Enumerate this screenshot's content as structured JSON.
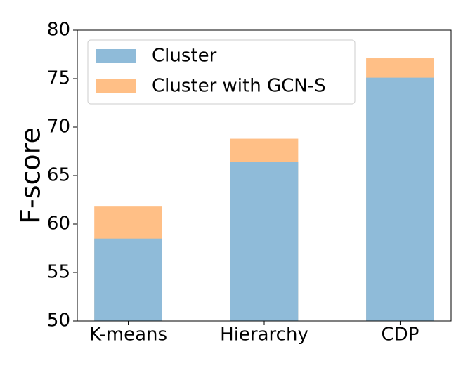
{
  "chart_data": {
    "type": "bar",
    "ylabel": "F-score",
    "categories": [
      "K-means",
      "Hierarchy",
      "CDP"
    ],
    "series": [
      {
        "name": "Cluster",
        "color": "#8fbbd9",
        "values": [
          58.5,
          66.4,
          75.1
        ]
      },
      {
        "name": "Cluster with GCN-S",
        "color": "#ffbf86",
        "values": [
          61.8,
          68.8,
          77.1
        ]
      }
    ],
    "ylim": [
      50,
      80
    ],
    "yticks": [
      50,
      55,
      60,
      65,
      70,
      75,
      80
    ],
    "legend": "upper left"
  }
}
